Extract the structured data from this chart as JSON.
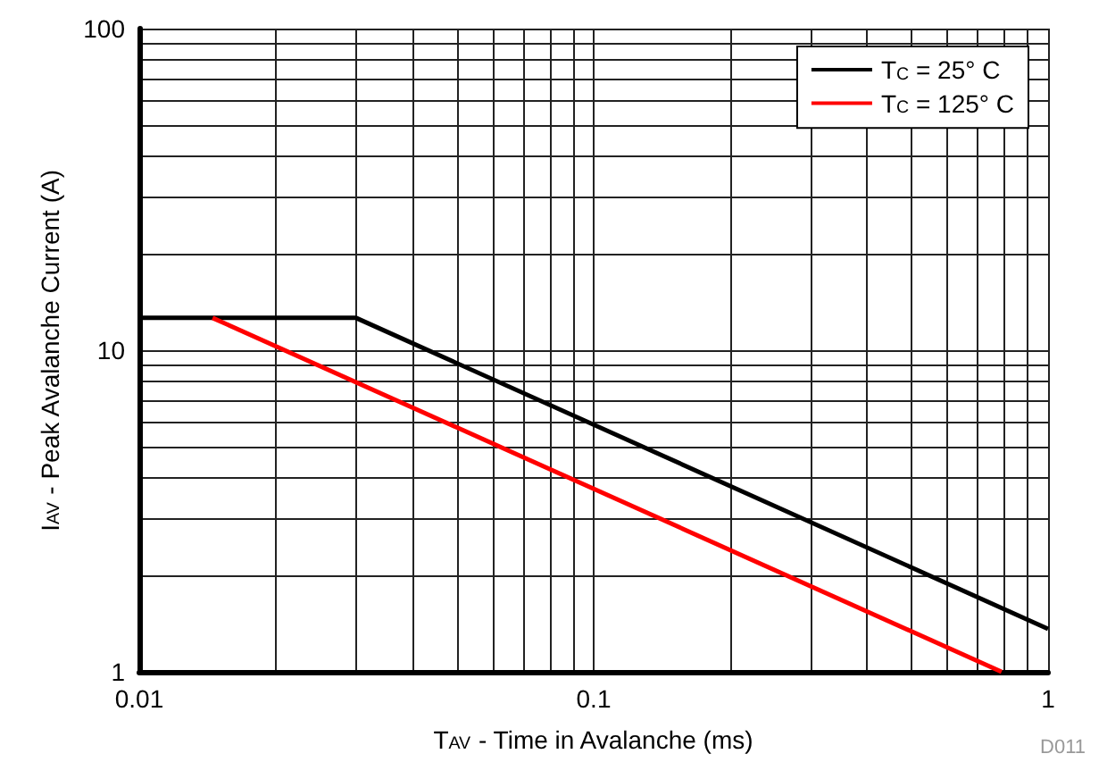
{
  "chart_data": {
    "type": "line",
    "xlabel": "T$_{AV}$ - Time in Avalanche (ms)",
    "ylabel": "I$_{AV}$ - Peak Avalanche Current (A)",
    "log": "xy",
    "xlim": [
      0.01,
      1
    ],
    "ylim": [
      1,
      100
    ],
    "xticks": [
      0.01,
      {
        "value": 0.02,
        "label": null
      },
      {
        "value": 0.03,
        "label": null
      },
      {
        "value": 0.04,
        "label": null
      },
      {
        "value": 0.05,
        "label": null
      },
      {
        "value": 0.06,
        "label": null
      },
      {
        "value": 0.07,
        "label": null
      },
      {
        "value": 0.08,
        "label": null
      },
      {
        "value": 0.09,
        "label": null
      },
      0.1,
      {
        "value": 0.2,
        "label": null
      },
      {
        "value": 0.3,
        "label": null
      },
      {
        "value": 0.4,
        "label": null
      },
      {
        "value": 0.5,
        "label": null
      },
      {
        "value": 0.6,
        "label": null
      },
      {
        "value": 0.7,
        "label": null
      },
      {
        "value": 0.8,
        "label": null
      },
      {
        "value": 0.9,
        "label": null
      },
      1
    ],
    "yticks": [
      1,
      {
        "value": 2,
        "label": null
      },
      {
        "value": 3,
        "label": null
      },
      {
        "value": 4,
        "label": null
      },
      {
        "value": 5,
        "label": null
      },
      {
        "value": 6,
        "label": null
      },
      {
        "value": 7,
        "label": null
      },
      {
        "value": 8,
        "label": null
      },
      {
        "value": 9,
        "label": null
      },
      10,
      {
        "value": 20,
        "label": null
      },
      {
        "value": 30,
        "label": null
      },
      {
        "value": 40,
        "label": null
      },
      {
        "value": 50,
        "label": null
      },
      {
        "value": 60,
        "label": null
      },
      {
        "value": 70,
        "label": null
      },
      {
        "value": 80,
        "label": null
      },
      {
        "value": 90,
        "label": null
      },
      100
    ],
    "grid": true,
    "legend": "top right",
    "marker": "none",
    "line_style": "solid",
    "series": [
      {
        "name": "T$_{C}$ = 25° C",
        "color": "#000000",
        "x": [
          0.01,
          0.03,
          1
        ],
        "values": [
          12.6,
          12.6,
          1.36
        ]
      },
      {
        "name": "T$_{C}$ = 125° C",
        "color": "#ff0000",
        "x": [
          0.0145,
          0.79
        ],
        "values": [
          12.6,
          1
        ]
      }
    ],
    "annotations": [
      "D011"
    ]
  }
}
